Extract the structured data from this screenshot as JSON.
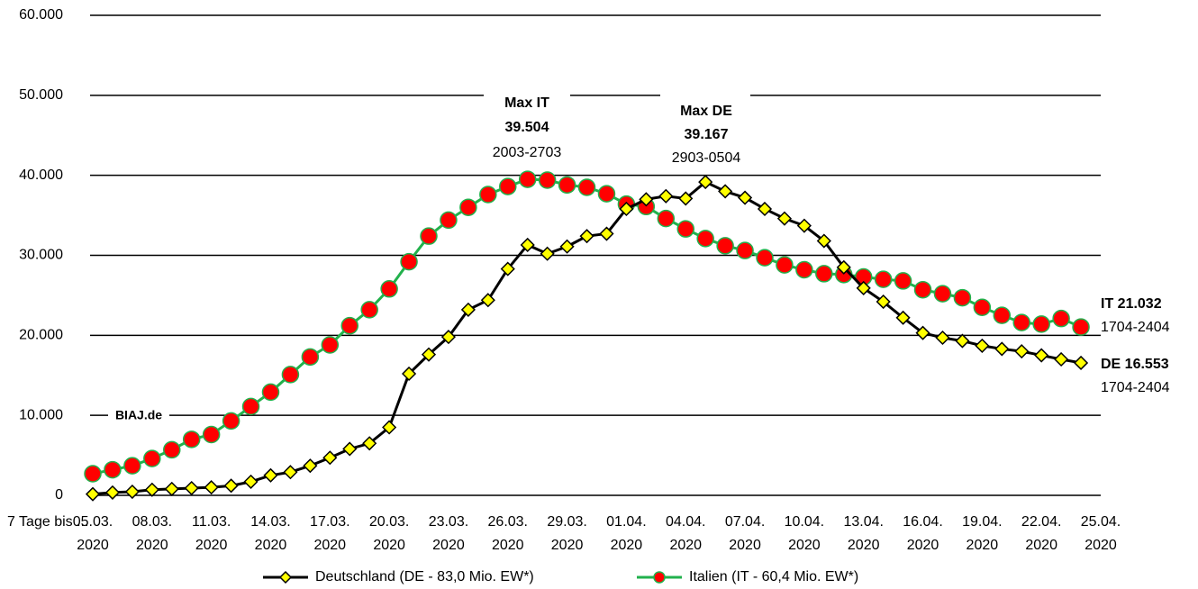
{
  "chart_data": {
    "type": "line",
    "x_label": "7 Tage bis ...",
    "categories": [
      "05.03. 2020",
      null,
      null,
      "08.03. 2020",
      null,
      null,
      "11.03. 2020",
      null,
      null,
      "14.03. 2020",
      null,
      null,
      "17.03. 2020",
      null,
      null,
      "20.03. 2020",
      null,
      null,
      "23.03. 2020",
      null,
      null,
      "26.03. 2020",
      null,
      null,
      "29.03. 2020",
      null,
      null,
      "01.04. 2020",
      null,
      null,
      "04.04. 2020",
      null,
      null,
      "07.04. 2020",
      null,
      null,
      "10.04. 2020",
      null,
      null,
      "13.04. 2020",
      null,
      null,
      "16.04. 2020",
      null,
      null,
      "19.04. 2020",
      null,
      null,
      "22.04. 2020",
      null,
      null,
      "25.04. 2020"
    ],
    "series": [
      {
        "name": "Deutschland (DE - 83,0 Mio. EW*)",
        "color": "#000000",
        "marker_color": "#ffff00",
        "marker": "diamond",
        "values": [
          150,
          350,
          450,
          700,
          800,
          900,
          1000,
          1200,
          1700,
          2500,
          2900,
          3700,
          4700,
          5800,
          6500,
          8500,
          15200,
          17600,
          19800,
          23200,
          24400,
          28300,
          31300,
          30200,
          31100,
          32400,
          32700,
          35800,
          37000,
          37400,
          37100,
          39167,
          38000,
          37200,
          35800,
          34600,
          33700,
          31800,
          28500,
          25900,
          24200,
          22200,
          20300,
          19700,
          19300,
          18700,
          18300,
          18000,
          17500,
          17000,
          16553,
          null
        ]
      },
      {
        "name": "Italien (IT - 60,4 Mio. EW*)",
        "color": "#22b14c",
        "marker_color": "#ff0000",
        "marker": "circle",
        "values": [
          2700,
          3200,
          3700,
          4600,
          5700,
          7000,
          7600,
          9300,
          11100,
          12900,
          15100,
          17300,
          18800,
          21200,
          23200,
          25800,
          29200,
          32400,
          34400,
          36000,
          37600,
          38600,
          39504,
          39400,
          38800,
          38500,
          37700,
          36400,
          36100,
          34600,
          33300,
          32100,
          31200,
          30600,
          29700,
          28800,
          28200,
          27700,
          27600,
          27300,
          27000,
          26800,
          25700,
          25200,
          24700,
          23500,
          22500,
          21600,
          21400,
          22100,
          21032,
          null
        ]
      }
    ],
    "ylim": [
      0,
      60000
    ],
    "yticks": [
      0,
      {
        "value": 10000,
        "label": "10.000"
      },
      {
        "value": 20000,
        "label": "20.000"
      },
      {
        "value": 30000,
        "label": "30.000"
      },
      {
        "value": 40000,
        "label": "40.000"
      },
      {
        "value": 50000,
        "label": "50.000"
      },
      {
        "value": 60000,
        "label": "60.000"
      }
    ],
    "grid": true,
    "legend": "bottom",
    "annotations": [
      "Max IT",
      "39.504",
      "2003-2703",
      "Max DE",
      "39.167",
      "2903-0504",
      "IT 21.032",
      "1704-2404",
      "DE 16.553",
      "1704-2404",
      "BIAJ.de"
    ]
  }
}
